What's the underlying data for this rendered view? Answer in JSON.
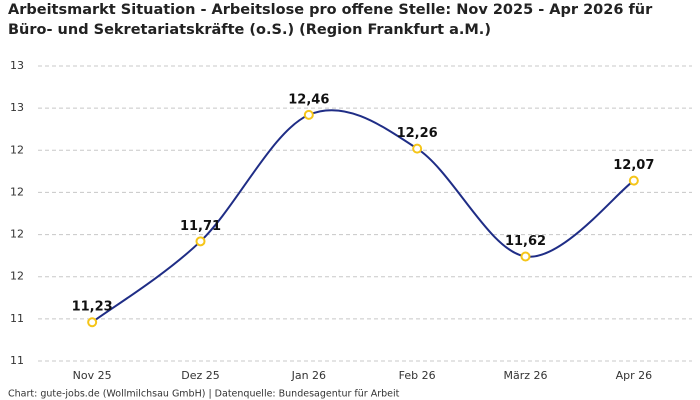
{
  "chart_data": {
    "type": "line",
    "title": "Arbeitsmarkt Situation - Arbeitslose pro offene Stelle: Nov 2025 - Apr 2026 für Büro- und Sekretariatskräfte (o.S.) (Region Frankfurt a.M.)",
    "categories": [
      "Nov 25",
      "Dez 25",
      "Jan 26",
      "Feb 26",
      "März 26",
      "Apr 26"
    ],
    "values": [
      11.23,
      11.71,
      12.46,
      12.26,
      11.62,
      12.07
    ],
    "value_labels": [
      "11,23",
      "11,71",
      "12,46",
      "12,26",
      "11,62",
      "12,07"
    ],
    "color": "#1f2d86",
    "marker_color": "#f5c518",
    "ylim": [
      11,
      12.75
    ],
    "yticks": [
      11,
      {
        "value": 11.25,
        "label": "11"
      },
      {
        "value": 11.5,
        "label": "12"
      },
      {
        "value": 11.75,
        "label": "12"
      },
      12,
      {
        "value": 12.25,
        "label": "12"
      },
      {
        "value": 12.5,
        "label": "13"
      },
      {
        "value": 12.75,
        "label": "13"
      }
    ],
    "grid": true,
    "source": "Chart: gute-jobs.de (Wollmilchsau GmbH) | Datenquelle: Bundesagentur für Arbeit"
  }
}
